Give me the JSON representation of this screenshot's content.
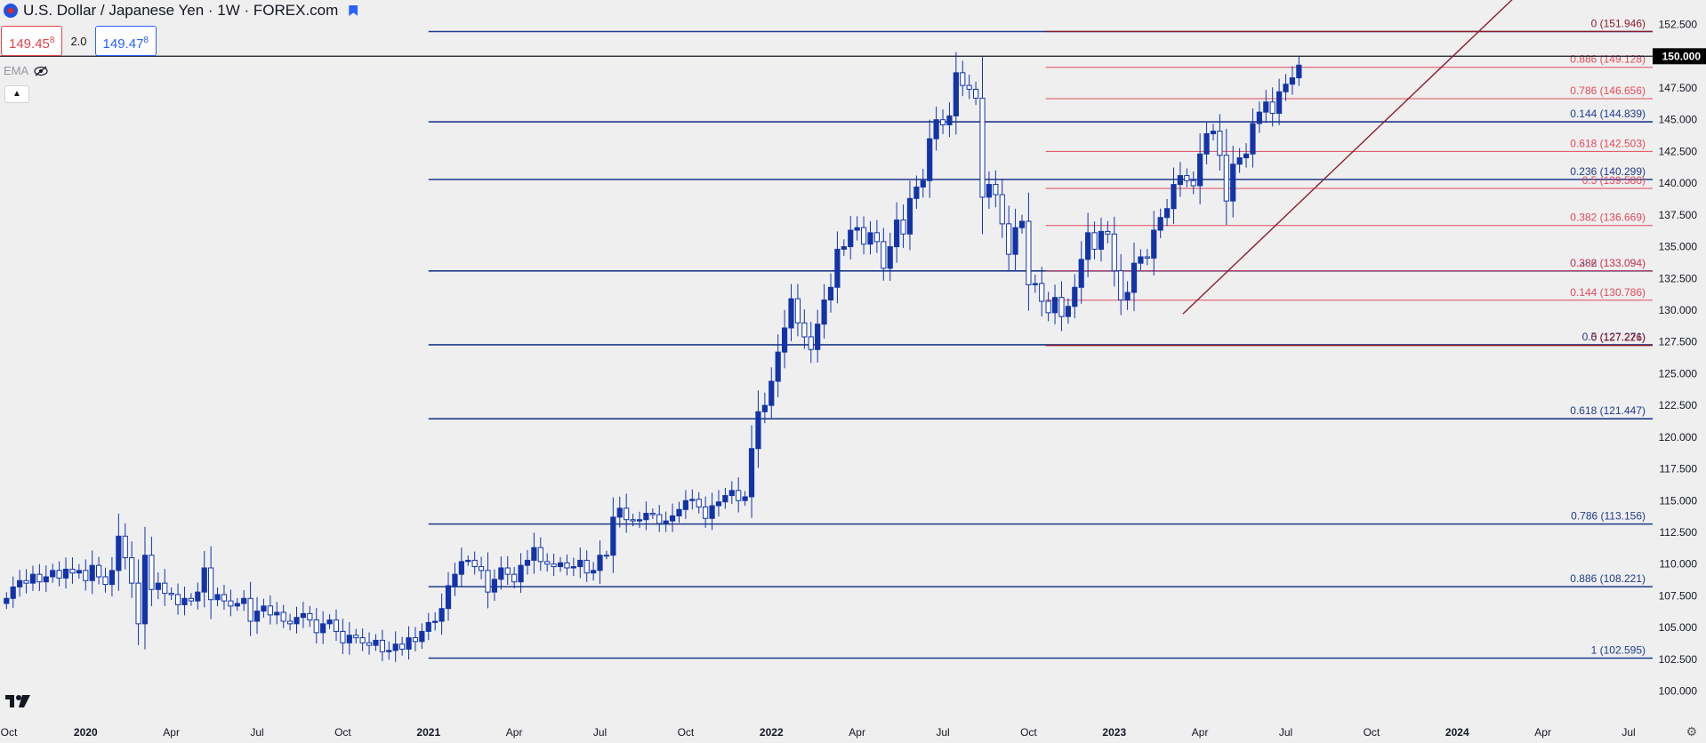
{
  "header": {
    "title": "U.S. Dollar / Japanese Yen · 1W · FOREX.com",
    "sell_price": "149.45",
    "sell_price_sup": "8",
    "spread": "2.0",
    "buy_price": "149.47",
    "buy_price_sup": "8",
    "indicator_label": "EMA"
  },
  "colors": {
    "background": "#efefef",
    "candle": "#1234a8",
    "fib_primary": "#1e3a8a",
    "fib_secondary": "#e04a5a",
    "trendline": "#8b1c2c",
    "price_tag": "#000000"
  },
  "chart_data": {
    "type": "candlestick",
    "symbol": "USDJPY",
    "timeframe": "1W",
    "ylim": [
      98.5,
      153.8
    ],
    "y_ticks": [
      "100.000",
      "102.500",
      "105.000",
      "107.500",
      "110.000",
      "112.500",
      "115.000",
      "117.500",
      "120.000",
      "122.500",
      "125.000",
      "127.500",
      "130.000",
      "132.500",
      "135.000",
      "137.500",
      "140.000",
      "142.500",
      "145.000",
      "147.500",
      "150.000",
      "152.500"
    ],
    "x_labels": [
      {
        "t": 2019.75,
        "label": "Oct"
      },
      {
        "t": 2020.0,
        "label": "2020"
      },
      {
        "t": 2020.25,
        "label": "Apr"
      },
      {
        "t": 2020.5,
        "label": "Jul"
      },
      {
        "t": 2020.75,
        "label": "Oct"
      },
      {
        "t": 2021.0,
        "label": "2021"
      },
      {
        "t": 2021.25,
        "label": "Apr"
      },
      {
        "t": 2021.5,
        "label": "Jul"
      },
      {
        "t": 2021.75,
        "label": "Oct"
      },
      {
        "t": 2022.0,
        "label": "2022"
      },
      {
        "t": 2022.25,
        "label": "Apr"
      },
      {
        "t": 2022.5,
        "label": "Jul"
      },
      {
        "t": 2022.75,
        "label": "Oct"
      },
      {
        "t": 2023.0,
        "label": "2023"
      },
      {
        "t": 2023.25,
        "label": "Apr"
      },
      {
        "t": 2023.5,
        "label": "Jul"
      },
      {
        "t": 2023.75,
        "label": "Oct"
      },
      {
        "t": 2024.0,
        "label": "2024"
      },
      {
        "t": 2024.25,
        "label": "Apr"
      },
      {
        "t": 2024.5,
        "label": "Jul"
      }
    ],
    "t_range": [
      2019.75,
      2024.6
    ],
    "current_price": 150.0,
    "current_price_label": "150.000",
    "fib_primary": {
      "t_start": 2021.0,
      "levels": [
        {
          "value": 144.839,
          "label": "0.144 (144.839)"
        },
        {
          "value": 140.299,
          "label": "0.236 (140.299)"
        },
        {
          "value": 133.094,
          "label": "0.382 (133.094)"
        },
        {
          "value": 127.271,
          "label": "0.5 (127.271)"
        },
        {
          "value": 121.447,
          "label": "0.618 (121.447)"
        },
        {
          "value": 113.156,
          "label": "0.786 (113.156)"
        },
        {
          "value": 108.221,
          "label": "0.886 (108.221)"
        },
        {
          "value": 102.595,
          "label": "1 (102.595)"
        }
      ],
      "top_line": 151.946
    },
    "fib_secondary": {
      "t_start": 2022.8,
      "levels": [
        {
          "value": 151.946,
          "label": "0 (151.946)"
        },
        {
          "value": 149.128,
          "label": "0.886 (149.128)"
        },
        {
          "value": 146.656,
          "label": "0.786 (146.656)"
        },
        {
          "value": 142.503,
          "label": "0.618 (142.503)"
        },
        {
          "value": 139.586,
          "label": "0.5 (139.586)"
        },
        {
          "value": 136.669,
          "label": "0.382 (136.669)"
        },
        {
          "value": 133.094,
          "label": "0.236 (133.094)"
        },
        {
          "value": 130.786,
          "label": "0.144 (130.786)"
        },
        {
          "value": 127.226,
          "label": "0 (127.226)"
        }
      ]
    },
    "trendline": {
      "t1": 2023.2,
      "p1": 129.7,
      "t2": 2024.22,
      "p2": 156.0
    },
    "closes": [
      107.3,
      108.2,
      108.7,
      108.5,
      109.2,
      108.6,
      109.0,
      109.5,
      108.9,
      109.6,
      109.3,
      109.5,
      108.7,
      109.9,
      109.0,
      108.4,
      109.5,
      112.2,
      110.5,
      108.5,
      105.3,
      110.7,
      108.0,
      108.5,
      107.7,
      107.6,
      106.8,
      107.3,
      107.1,
      107.8,
      109.7,
      107.2,
      107.6,
      107.1,
      106.7,
      106.9,
      107.3,
      105.5,
      106.3,
      106.7,
      106.0,
      106.2,
      105.5,
      105.3,
      105.8,
      106.1,
      105.6,
      104.6,
      105.3,
      105.6,
      104.7,
      103.8,
      104.4,
      104.2,
      103.8,
      103.6,
      104.0,
      103.1,
      103.2,
      103.7,
      103.3,
      104.2,
      103.9,
      104.7,
      105.4,
      105.5,
      106.5,
      108.3,
      109.2,
      110.2,
      110.3,
      109.8,
      109.5,
      107.8,
      108.8,
      109.7,
      109.2,
      108.6,
      109.9,
      110.3,
      111.3,
      110.2,
      110.0,
      109.8,
      110.1,
      109.7,
      109.8,
      110.3,
      109.3,
      109.5,
      110.7,
      110.7,
      113.7,
      114.4,
      113.5,
      113.4,
      113.5,
      114.0,
      113.9,
      113.2,
      113.4,
      113.8,
      114.3,
      115.0,
      115.1,
      114.5,
      113.6,
      114.6,
      114.9,
      115.4,
      115.8,
      115.0,
      115.3,
      119.1,
      122.0,
      122.5,
      124.4,
      126.7,
      128.6,
      130.9,
      129.0,
      127.9,
      126.9,
      128.9,
      130.8,
      131.8,
      134.8,
      135.0,
      136.3,
      136.5,
      135.2,
      136.1,
      135.4,
      133.3,
      135.0,
      137.1,
      136.0,
      138.8,
      139.7,
      140.2,
      143.5,
      145.0,
      144.6,
      145.3,
      148.7,
      147.7,
      147.4,
      146.7,
      138.9,
      139.9,
      139.1,
      136.8,
      134.4,
      136.5,
      137.0,
      132.0,
      132.1,
      130.7,
      129.8,
      131.0,
      129.5,
      130.3,
      131.8,
      134.0,
      136.1,
      134.8,
      136.2,
      136.0,
      133.1,
      130.8,
      131.4,
      133.7,
      134.2,
      134.1,
      136.3,
      137.3,
      138.0,
      139.9,
      140.6,
      140.2,
      139.8,
      142.3,
      143.9,
      144.1,
      142.2,
      138.6,
      141.5,
      142.0,
      142.3,
      144.7,
      145.6,
      146.4,
      145.5,
      147.2,
      147.8,
      148.3,
      149.3
    ]
  }
}
